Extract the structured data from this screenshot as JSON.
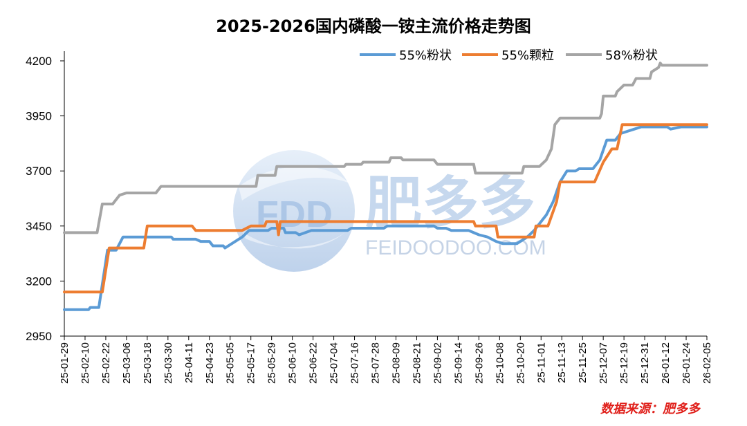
{
  "chart_data": {
    "type": "line",
    "title": "2025-2026国内磷酸一铵主流价格走势图",
    "source": "数据来源：肥多多",
    "xlabel": "",
    "ylabel": "",
    "ylim": [
      2950,
      4200
    ],
    "yticks": [
      2950,
      3200,
      3450,
      3700,
      3950,
      4200
    ],
    "xlim": [
      "25-01-29",
      "26-02-05"
    ],
    "xticks": [
      "25-01-29",
      "25-02-10",
      "25-02-22",
      "25-03-06",
      "25-03-18",
      "25-03-30",
      "25-04-11",
      "25-04-23",
      "25-05-05",
      "25-05-17",
      "25-05-29",
      "25-06-10",
      "25-06-22",
      "25-07-04",
      "25-07-16",
      "25-07-28",
      "25-08-09",
      "25-08-21",
      "25-09-02",
      "25-09-14",
      "25-09-26",
      "25-10-08",
      "25-10-20",
      "25-11-01",
      "25-11-13",
      "25-11-25",
      "25-12-07",
      "25-12-19",
      "25-12-31",
      "26-01-12",
      "26-01-24",
      "26-02-05"
    ],
    "grid": false,
    "legend_position": "top-right",
    "series": [
      {
        "name": "55%粉状",
        "color": "#5b9bd5",
        "points": [
          [
            "25-01-29",
            3070
          ],
          [
            "25-02-12",
            3070
          ],
          [
            "25-02-13",
            3080
          ],
          [
            "25-02-18",
            3080
          ],
          [
            "25-02-23",
            3340
          ],
          [
            "25-02-28",
            3340
          ],
          [
            "25-03-04",
            3400
          ],
          [
            "25-04-01",
            3400
          ],
          [
            "25-04-02",
            3390
          ],
          [
            "25-04-15",
            3390
          ],
          [
            "25-04-18",
            3380
          ],
          [
            "25-04-23",
            3380
          ],
          [
            "25-04-25",
            3360
          ],
          [
            "25-05-01",
            3360
          ],
          [
            "25-05-02",
            3350
          ],
          [
            "25-05-08",
            3380
          ],
          [
            "25-05-12",
            3400
          ],
          [
            "25-05-16",
            3430
          ],
          [
            "25-05-27",
            3430
          ],
          [
            "25-05-29",
            3440
          ],
          [
            "25-06-05",
            3440
          ],
          [
            "25-06-06",
            3420
          ],
          [
            "25-06-12",
            3420
          ],
          [
            "25-06-14",
            3410
          ],
          [
            "25-06-21",
            3430
          ],
          [
            "25-07-12",
            3430
          ],
          [
            "25-07-14",
            3440
          ],
          [
            "25-08-02",
            3440
          ],
          [
            "25-08-04",
            3450
          ],
          [
            "25-08-31",
            3450
          ],
          [
            "25-09-02",
            3440
          ],
          [
            "25-09-07",
            3440
          ],
          [
            "25-09-10",
            3430
          ],
          [
            "25-09-20",
            3430
          ],
          [
            "25-09-23",
            3420
          ],
          [
            "25-09-26",
            3410
          ],
          [
            "25-10-01",
            3400
          ],
          [
            "25-10-06",
            3380
          ],
          [
            "25-10-10",
            3370
          ],
          [
            "25-10-18",
            3370
          ],
          [
            "25-10-24",
            3400
          ],
          [
            "25-10-28",
            3430
          ],
          [
            "25-10-31",
            3460
          ],
          [
            "25-11-04",
            3500
          ],
          [
            "25-11-08",
            3560
          ],
          [
            "25-11-12",
            3650
          ],
          [
            "25-11-16",
            3700
          ],
          [
            "25-11-21",
            3700
          ],
          [
            "25-11-23",
            3710
          ],
          [
            "25-12-01",
            3710
          ],
          [
            "25-12-05",
            3750
          ],
          [
            "25-12-09",
            3840
          ],
          [
            "25-12-14",
            3840
          ],
          [
            "25-12-17",
            3870
          ],
          [
            "25-12-21",
            3880
          ],
          [
            "25-12-25",
            3890
          ],
          [
            "25-12-29",
            3900
          ],
          [
            "26-01-13",
            3900
          ],
          [
            "26-01-15",
            3890
          ],
          [
            "26-01-21",
            3900
          ],
          [
            "26-02-05",
            3900
          ]
        ]
      },
      {
        "name": "55%颗粒",
        "color": "#ed7d31",
        "points": [
          [
            "25-01-29",
            3150
          ],
          [
            "25-02-20",
            3150
          ],
          [
            "25-02-24",
            3350
          ],
          [
            "25-03-16",
            3350
          ],
          [
            "25-03-18",
            3450
          ],
          [
            "25-04-13",
            3450
          ],
          [
            "25-04-15",
            3430
          ],
          [
            "25-05-12",
            3430
          ],
          [
            "25-05-17",
            3450
          ],
          [
            "25-05-25",
            3450
          ],
          [
            "25-05-26",
            3470
          ],
          [
            "25-06-01",
            3470
          ],
          [
            "25-06-02",
            3410
          ],
          [
            "25-06-03",
            3470
          ],
          [
            "25-09-23",
            3470
          ],
          [
            "25-09-24",
            3450
          ],
          [
            "25-10-06",
            3450
          ],
          [
            "25-10-07",
            3400
          ],
          [
            "25-10-28",
            3400
          ],
          [
            "25-10-29",
            3450
          ],
          [
            "25-11-05",
            3450
          ],
          [
            "25-11-10",
            3560
          ],
          [
            "25-11-12",
            3650
          ],
          [
            "25-12-02",
            3650
          ],
          [
            "25-12-07",
            3740
          ],
          [
            "25-12-12",
            3800
          ],
          [
            "25-12-15",
            3800
          ],
          [
            "25-12-18",
            3910
          ],
          [
            "26-02-05",
            3910
          ]
        ]
      },
      {
        "name": "58%粉状",
        "color": "#a5a5a5",
        "points": [
          [
            "25-01-29",
            3420
          ],
          [
            "25-02-17",
            3420
          ],
          [
            "25-02-20",
            3550
          ],
          [
            "25-02-26",
            3550
          ],
          [
            "25-03-02",
            3590
          ],
          [
            "25-03-06",
            3600
          ],
          [
            "25-03-23",
            3600
          ],
          [
            "25-03-26",
            3630
          ],
          [
            "25-05-20",
            3630
          ],
          [
            "25-05-21",
            3680
          ],
          [
            "25-05-31",
            3680
          ],
          [
            "25-06-01",
            3720
          ],
          [
            "25-07-10",
            3720
          ],
          [
            "25-07-11",
            3730
          ],
          [
            "25-07-20",
            3730
          ],
          [
            "25-07-21",
            3740
          ],
          [
            "25-08-05",
            3740
          ],
          [
            "25-08-06",
            3760
          ],
          [
            "25-08-12",
            3760
          ],
          [
            "25-08-13",
            3750
          ],
          [
            "25-08-31",
            3750
          ],
          [
            "25-09-02",
            3730
          ],
          [
            "25-09-23",
            3730
          ],
          [
            "25-09-24",
            3690
          ],
          [
            "25-10-21",
            3690
          ],
          [
            "25-10-22",
            3720
          ],
          [
            "25-10-31",
            3720
          ],
          [
            "25-11-04",
            3750
          ],
          [
            "25-11-07",
            3800
          ],
          [
            "25-11-09",
            3910
          ],
          [
            "25-11-12",
            3940
          ],
          [
            "25-12-05",
            3940
          ],
          [
            "25-12-06",
            3960
          ],
          [
            "25-12-07",
            4040
          ],
          [
            "25-12-14",
            4040
          ],
          [
            "25-12-15",
            4060
          ],
          [
            "25-12-19",
            4090
          ],
          [
            "25-12-24",
            4090
          ],
          [
            "25-12-26",
            4120
          ],
          [
            "26-01-03",
            4120
          ],
          [
            "26-01-04",
            4150
          ],
          [
            "26-01-08",
            4170
          ],
          [
            "26-01-09",
            4190
          ],
          [
            "26-01-10",
            4180
          ],
          [
            "26-02-05",
            4180
          ]
        ]
      }
    ]
  }
}
